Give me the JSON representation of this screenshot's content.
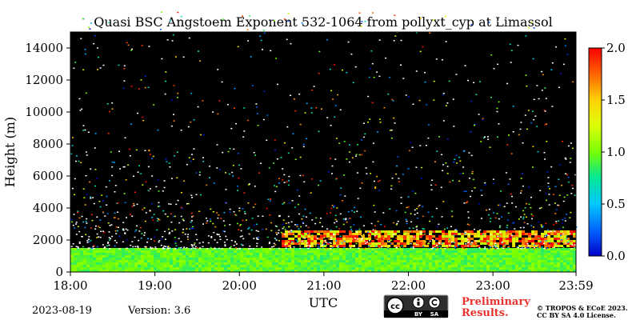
{
  "chart_data": {
    "type": "heatmap",
    "title": "Quasi BSC Angstoem Exponent 532-1064 from pollyxt_cyp at Limassol",
    "xlabel": "UTC",
    "ylabel": "Height (m)",
    "x_ticks": [
      "18:00",
      "19:00",
      "20:00",
      "21:00",
      "22:00",
      "23:00",
      "23:59"
    ],
    "x_range_hours": [
      18.0,
      23.983
    ],
    "y_ticks": [
      0,
      2000,
      4000,
      6000,
      8000,
      10000,
      12000,
      14000
    ],
    "ylim": [
      0,
      15000
    ],
    "colorbar": {
      "ticks": [
        "0.0",
        "0.5",
        "1.0",
        "1.5",
        "2.0"
      ],
      "range": [
        0.0,
        2.0
      ],
      "colors": [
        "#0000c8",
        "#0064ff",
        "#00c8ff",
        "#00e696",
        "#78ff00",
        "#dcff00",
        "#ffd200",
        "#ff6400",
        "#ff0000"
      ]
    },
    "background": "#000000",
    "layers": [
      {
        "label": "near-surface",
        "height_range": [
          0,
          1500
        ],
        "value": 0.95,
        "time_range_hours": [
          18.0,
          23.983
        ]
      },
      {
        "label": "elevated",
        "height_range": [
          1600,
          2600
        ],
        "value": 1.6,
        "time_range_hours": [
          20.5,
          23.983
        ]
      }
    ]
  },
  "footer": {
    "date": "2023-08-19",
    "version": "Version: 3.6",
    "preliminary_line1": "Preliminary",
    "preliminary_line2": "Results.",
    "copyright_line1": "© TROPOS & ECoE 2023.",
    "copyright_line2": "CC BY SA 4.0 License.",
    "cc_badge": {
      "icon": "cc-by-sa-icon",
      "by": "BY",
      "sa": "SA"
    }
  }
}
